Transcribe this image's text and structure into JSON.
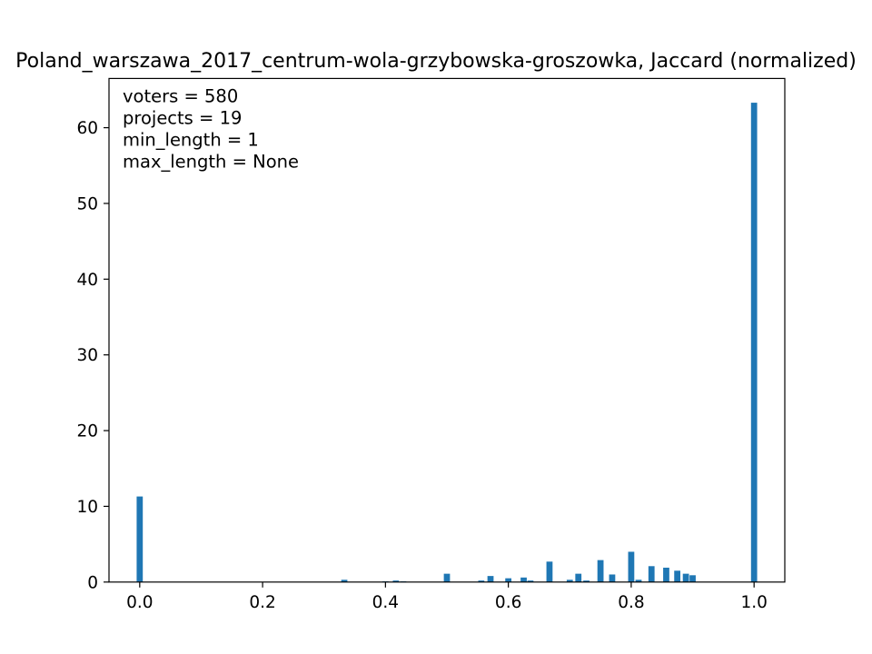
{
  "chart_data": {
    "type": "bar",
    "title": "Poland_warszawa_2017_centrum-wola-grzybowska-groszowka, Jaccard (normalized)",
    "xlabel": "",
    "ylabel": "",
    "xlim": [
      -0.05,
      1.05
    ],
    "ylim": [
      0,
      66.5
    ],
    "bin_width": 0.01,
    "x_ticks": [
      0.0,
      0.2,
      0.4,
      0.6,
      0.8,
      1.0
    ],
    "x_tick_labels": [
      "0.0",
      "0.2",
      "0.4",
      "0.6",
      "0.8",
      "1.0"
    ],
    "y_ticks": [
      0,
      10,
      20,
      30,
      40,
      50,
      60
    ],
    "y_tick_labels": [
      "0",
      "10",
      "20",
      "30",
      "40",
      "50",
      "60"
    ],
    "grid": false,
    "color": "#1f77b4",
    "annotations": [
      "voters = 580",
      "projects = 19",
      "min_length = 1",
      "max_length = None"
    ],
    "x": [
      0.0,
      0.333,
      0.4,
      0.417,
      0.429,
      0.5,
      0.556,
      0.571,
      0.6,
      0.625,
      0.636,
      0.667,
      0.7,
      0.714,
      0.727,
      0.75,
      0.769,
      0.8,
      0.812,
      0.833,
      0.857,
      0.875,
      0.889,
      0.9,
      1.0
    ],
    "values": [
      11.3,
      0.3,
      0.1,
      0.2,
      0.1,
      1.1,
      0.2,
      0.8,
      0.5,
      0.6,
      0.2,
      2.7,
      0.3,
      1.1,
      0.2,
      2.9,
      1.0,
      4.0,
      0.3,
      2.1,
      1.9,
      1.5,
      1.1,
      0.9,
      63.3
    ]
  }
}
